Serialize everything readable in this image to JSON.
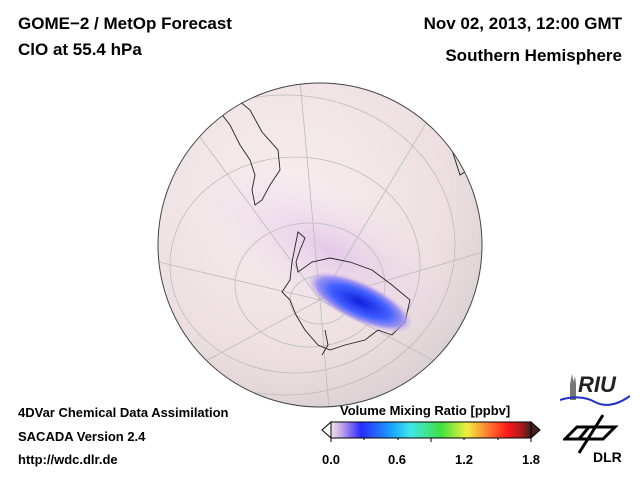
{
  "header": {
    "title": "GOME−2 / MetOp Forecast",
    "subtitle": "ClO at 55.4 hPa",
    "datetime": "Nov 02, 2013, 12:00 GMT",
    "region": "Southern Hemisphere"
  },
  "footer": {
    "line1": "4DVar Chemical Data Assimilation",
    "line2": "SACADA Version 2.4",
    "url": "http://wdc.dlr.de"
  },
  "colorbar": {
    "label": "Volume Mixing Ratio [ppbv]",
    "ticks": [
      "0.0",
      "0.6",
      "1.2",
      "1.8"
    ],
    "range": [
      0.0,
      1.8
    ],
    "colors": [
      "#f2e4ec",
      "#c8a8e8",
      "#2a2aff",
      "#1aa0ff",
      "#40e8e8",
      "#40e040",
      "#f0f040",
      "#ff8030",
      "#ff1a1a",
      "#b01a1a",
      "#402020"
    ]
  },
  "logos": {
    "riu": "RIU",
    "dlr": "DLR"
  }
}
